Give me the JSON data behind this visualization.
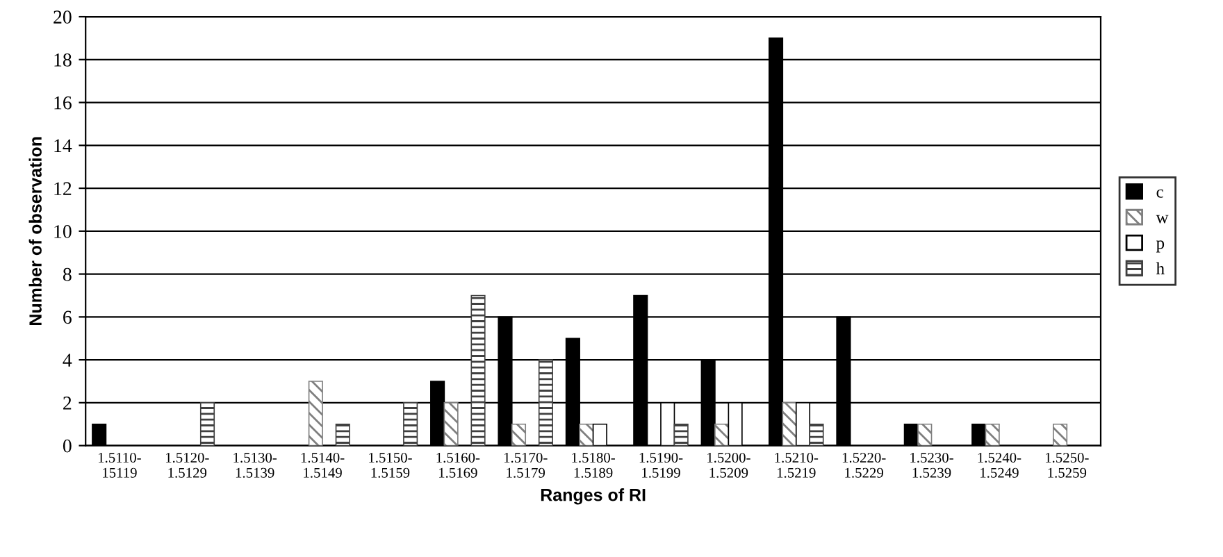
{
  "chart_data": {
    "type": "bar",
    "xlabel": "Ranges of RI",
    "ylabel": "Number of observation",
    "categories": [
      "1.5110-\n15119",
      "1.5120-\n1.5129",
      "1.5130-\n1.5139",
      "1.5140-\n1.5149",
      "1.5150-\n1.5159",
      "1.5160-\n1.5169",
      "1.5170-\n1.5179",
      "1.5180-\n1.5189",
      "1.5190-\n1.5199",
      "1.5200-\n1.5209",
      "1.5210-\n1.5219",
      "1.5220-\n1.5229",
      "1.5230-\n1.5239",
      "1.5240-\n1.5249",
      "1.5250-\n1.5259"
    ],
    "series": [
      {
        "name": "c",
        "color": "#000000",
        "values": [
          1,
          0,
          0,
          0,
          0,
          3,
          6,
          5,
          7,
          4,
          19,
          6,
          1,
          1,
          0
        ]
      },
      {
        "name": "w",
        "color": "#7f7f7f",
        "values": [
          0,
          0,
          0,
          3,
          0,
          2,
          1,
          1,
          0,
          1,
          2,
          0,
          1,
          1,
          1
        ]
      },
      {
        "name": "p",
        "color": "#ffffff",
        "values": [
          0,
          0,
          0,
          0,
          0,
          0,
          0,
          1,
          2,
          2,
          2,
          0,
          0,
          0,
          0
        ]
      },
      {
        "name": "h",
        "color": "#404040",
        "values": [
          0,
          2,
          0,
          1,
          2,
          7,
          4,
          0,
          1,
          0,
          1,
          0,
          0,
          0,
          0
        ]
      }
    ],
    "ylim": [
      0,
      20
    ],
    "yticks": [
      0,
      2,
      4,
      6,
      8,
      10,
      12,
      14,
      16,
      18,
      20
    ],
    "grid": "y",
    "legend": "right"
  }
}
